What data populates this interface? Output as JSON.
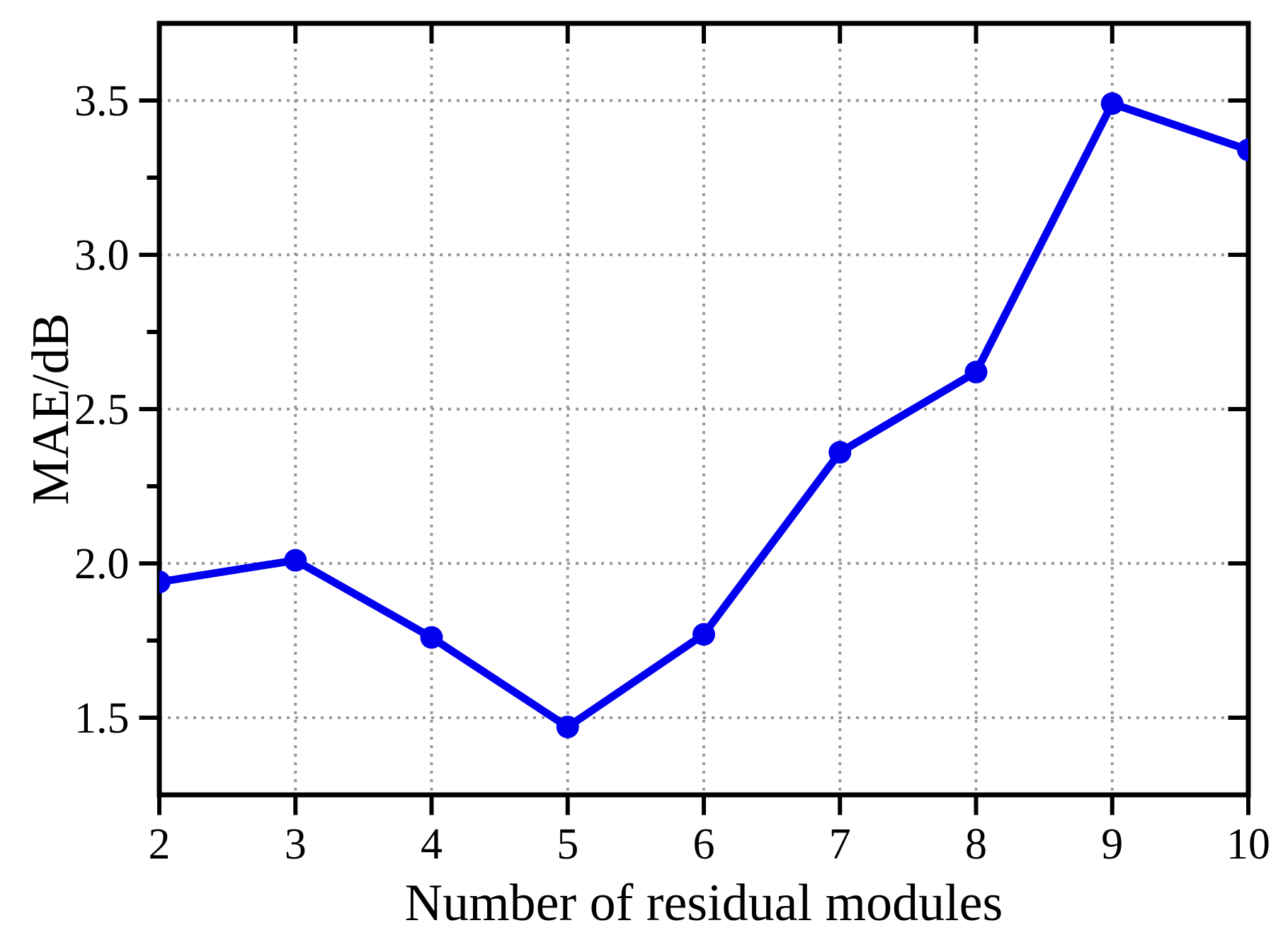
{
  "chart_data": {
    "type": "line",
    "title": "",
    "xlabel": "Number of residual modules",
    "ylabel": "MAE/dB",
    "x": [
      2,
      3,
      4,
      5,
      6,
      7,
      8,
      9,
      10
    ],
    "y": [
      1.94,
      2.01,
      1.76,
      1.47,
      1.77,
      2.36,
      2.62,
      3.49,
      3.34
    ],
    "series_name": "MAE",
    "xlim": [
      2,
      10
    ],
    "ylim": [
      1.25,
      3.75
    ],
    "x_ticks": [
      2,
      3,
      4,
      5,
      6,
      7,
      8,
      9,
      10
    ],
    "x_tick_labels": [
      "2",
      "3",
      "4",
      "5",
      "6",
      "7",
      "8",
      "9",
      "10"
    ],
    "y_ticks": [
      1.5,
      2.0,
      2.5,
      3.0,
      3.5
    ],
    "y_tick_labels": [
      "1.5",
      "2.0",
      "2.5",
      "3.0",
      "3.5"
    ],
    "y_minor_ticks": [
      1.75,
      2.25,
      2.75,
      3.25
    ],
    "grid": "dotted",
    "legend": "none",
    "marker": "circle",
    "colors": {
      "line": "#0000ee",
      "marker": "#0000ee",
      "grid": "#999999",
      "axis": "#000000",
      "background": "#ffffff"
    }
  }
}
